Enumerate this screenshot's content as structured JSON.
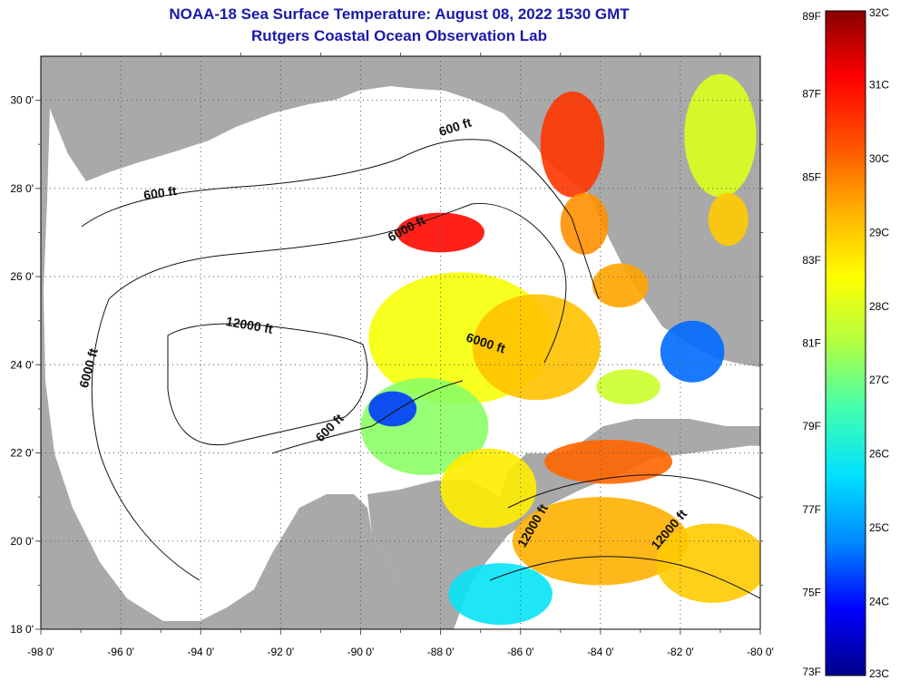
{
  "title": {
    "line1": "NOAA-18 Sea Surface Temperature:  August 08, 2022 1530 GMT",
    "line2": "Rutgers Coastal Ocean Observation Lab"
  },
  "map": {
    "extent": {
      "lon_min": -98,
      "lon_max": -80,
      "lat_min": 18,
      "lat_max": 31
    },
    "lon_ticks": [
      "-98 0'",
      "-96 0'",
      "-94 0'",
      "-92 0'",
      "-90 0'",
      "-88 0'",
      "-86 0'",
      "-84 0'",
      "-82 0'",
      "-80 0'"
    ],
    "lat_ticks": [
      "30 0'",
      "28 0'",
      "26 0'",
      "24 0'",
      "22 0'",
      "20 0'",
      "18 0'"
    ],
    "land_color": "#a9a9a9",
    "no_data_color": "#ffffff",
    "grid": "dotted",
    "contour_labels": [
      {
        "text": "600 ft",
        "lon": -95.0,
        "lat": 27.8,
        "angle": -8
      },
      {
        "text": "600 ft",
        "lon": -87.6,
        "lat": 29.3,
        "angle": -18
      },
      {
        "text": "6000 ft",
        "lon": -88.8,
        "lat": 27.0,
        "angle": -28
      },
      {
        "text": "12000 ft",
        "lon": -92.8,
        "lat": 24.8,
        "angle": 10
      },
      {
        "text": "6000 ft",
        "lon": -96.7,
        "lat": 23.9,
        "angle": -75
      },
      {
        "text": "6000 ft",
        "lon": -86.9,
        "lat": 24.4,
        "angle": 18
      },
      {
        "text": "600 ft",
        "lon": -90.7,
        "lat": 22.5,
        "angle": -45
      },
      {
        "text": "12000 ft",
        "lon": -85.6,
        "lat": 20.3,
        "angle": -60
      },
      {
        "text": "12000 ft",
        "lon": -82.2,
        "lat": 20.2,
        "angle": -50
      }
    ]
  },
  "legend": {
    "fahrenheit": [
      "89F",
      "87F",
      "85F",
      "83F",
      "81F",
      "79F",
      "77F",
      "75F",
      "73F"
    ],
    "celsius": [
      "32C",
      "31C",
      "30C",
      "29C",
      "28C",
      "27C",
      "26C",
      "25C",
      "24C",
      "23C"
    ],
    "stops": [
      "#00008a",
      "#0000ff",
      "#0088ff",
      "#00e0ff",
      "#40ffb0",
      "#b0ff40",
      "#ffff00",
      "#ffb000",
      "#ff5000",
      "#ff0000",
      "#8a0000"
    ]
  },
  "sst_patches": [
    {
      "lon": -84.7,
      "lat": 29.0,
      "rx": 0.8,
      "ry": 1.2,
      "temp": 30.5
    },
    {
      "lon": -84.4,
      "lat": 27.2,
      "rx": 0.6,
      "ry": 0.7,
      "temp": 29.6
    },
    {
      "lon": -88.0,
      "lat": 27.0,
      "rx": 1.1,
      "ry": 0.45,
      "temp": 31.0
    },
    {
      "lon": -83.5,
      "lat": 25.8,
      "rx": 0.7,
      "ry": 0.5,
      "temp": 29.4
    },
    {
      "lon": -87.5,
      "lat": 24.6,
      "rx": 2.3,
      "ry": 1.5,
      "temp": 28.3
    },
    {
      "lon": -85.6,
      "lat": 24.4,
      "rx": 1.6,
      "ry": 1.2,
      "temp": 29.1
    },
    {
      "lon": -88.4,
      "lat": 22.6,
      "rx": 1.6,
      "ry": 1.1,
      "temp": 27.2
    },
    {
      "lon": -89.2,
      "lat": 23.0,
      "rx": 0.6,
      "ry": 0.4,
      "temp": 24.3
    },
    {
      "lon": -86.8,
      "lat": 21.2,
      "rx": 1.2,
      "ry": 0.9,
      "temp": 28.6
    },
    {
      "lon": -83.8,
      "lat": 21.8,
      "rx": 1.6,
      "ry": 0.5,
      "temp": 30.0
    },
    {
      "lon": -84.0,
      "lat": 20.0,
      "rx": 2.2,
      "ry": 1.0,
      "temp": 29.3
    },
    {
      "lon": -81.2,
      "lat": 19.5,
      "rx": 1.4,
      "ry": 0.9,
      "temp": 29.0
    },
    {
      "lon": -86.5,
      "lat": 18.8,
      "rx": 1.3,
      "ry": 0.7,
      "temp": 25.8
    },
    {
      "lon": -81.0,
      "lat": 29.2,
      "rx": 0.9,
      "ry": 1.4,
      "temp": 28.0
    },
    {
      "lon": -81.7,
      "lat": 24.3,
      "rx": 0.8,
      "ry": 0.7,
      "temp": 24.6
    },
    {
      "lon": -80.8,
      "lat": 27.3,
      "rx": 0.5,
      "ry": 0.6,
      "temp": 29.0
    },
    {
      "lon": -83.3,
      "lat": 23.5,
      "rx": 0.8,
      "ry": 0.4,
      "temp": 27.8
    }
  ]
}
